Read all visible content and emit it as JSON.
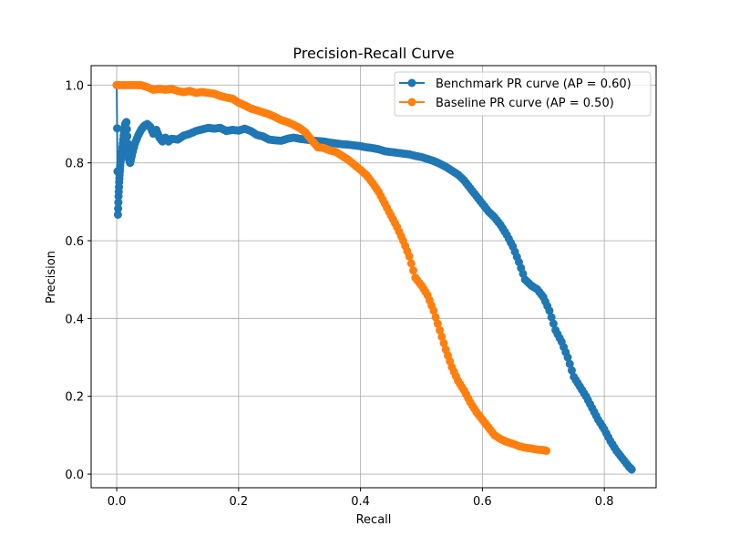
{
  "chart_data": {
    "type": "line",
    "title": "Precision-Recall Curve",
    "xlabel": "Recall",
    "ylabel": "Precision",
    "xlim": [
      -0.042,
      0.885
    ],
    "ylim": [
      -0.035,
      1.05
    ],
    "xticks": [
      0.0,
      0.2,
      0.4,
      0.6,
      0.8
    ],
    "yticks": [
      0.0,
      0.2,
      0.4,
      0.6,
      0.8,
      1.0
    ],
    "xtick_labels": [
      "0.0",
      "0.2",
      "0.4",
      "0.6",
      "0.8"
    ],
    "ytick_labels": [
      "0.0",
      "0.2",
      "0.4",
      "0.6",
      "0.8",
      "1.0"
    ],
    "grid": true,
    "legend_position": "top-right",
    "series": [
      {
        "name": "Benchmark PR curve (AP = 0.60)",
        "color": "#1f77b4",
        "marker": "circle",
        "points": [
          [
            0.0,
            1.0
          ],
          [
            0.002,
            0.667
          ],
          [
            0.003,
            0.714
          ],
          [
            0.004,
            0.75
          ],
          [
            0.005,
            0.778
          ],
          [
            0.006,
            0.8
          ],
          [
            0.008,
            0.82
          ],
          [
            0.01,
            0.85
          ],
          [
            0.012,
            0.88
          ],
          [
            0.014,
            0.9
          ],
          [
            0.016,
            0.905
          ],
          [
            0.018,
            0.85
          ],
          [
            0.02,
            0.81
          ],
          [
            0.022,
            0.8
          ],
          [
            0.025,
            0.82
          ],
          [
            0.03,
            0.85
          ],
          [
            0.035,
            0.87
          ],
          [
            0.04,
            0.885
          ],
          [
            0.045,
            0.895
          ],
          [
            0.05,
            0.9
          ],
          [
            0.055,
            0.893
          ],
          [
            0.06,
            0.875
          ],
          [
            0.065,
            0.885
          ],
          [
            0.07,
            0.865
          ],
          [
            0.075,
            0.855
          ],
          [
            0.08,
            0.865
          ],
          [
            0.085,
            0.855
          ],
          [
            0.09,
            0.862
          ],
          [
            0.1,
            0.86
          ],
          [
            0.11,
            0.87
          ],
          [
            0.12,
            0.875
          ],
          [
            0.13,
            0.882
          ],
          [
            0.14,
            0.886
          ],
          [
            0.15,
            0.89
          ],
          [
            0.16,
            0.888
          ],
          [
            0.17,
            0.89
          ],
          [
            0.18,
            0.882
          ],
          [
            0.19,
            0.885
          ],
          [
            0.2,
            0.883
          ],
          [
            0.21,
            0.888
          ],
          [
            0.22,
            0.882
          ],
          [
            0.23,
            0.872
          ],
          [
            0.24,
            0.868
          ],
          [
            0.25,
            0.86
          ],
          [
            0.26,
            0.858
          ],
          [
            0.27,
            0.857
          ],
          [
            0.28,
            0.862
          ],
          [
            0.29,
            0.865
          ],
          [
            0.3,
            0.862
          ],
          [
            0.31,
            0.86
          ],
          [
            0.32,
            0.858
          ],
          [
            0.33,
            0.856
          ],
          [
            0.34,
            0.855
          ],
          [
            0.35,
            0.852
          ],
          [
            0.36,
            0.85
          ],
          [
            0.37,
            0.848
          ],
          [
            0.38,
            0.847
          ],
          [
            0.39,
            0.845
          ],
          [
            0.4,
            0.843
          ],
          [
            0.41,
            0.84
          ],
          [
            0.42,
            0.838
          ],
          [
            0.43,
            0.835
          ],
          [
            0.44,
            0.83
          ],
          [
            0.45,
            0.828
          ],
          [
            0.46,
            0.826
          ],
          [
            0.47,
            0.824
          ],
          [
            0.48,
            0.822
          ],
          [
            0.49,
            0.818
          ],
          [
            0.5,
            0.815
          ],
          [
            0.51,
            0.81
          ],
          [
            0.52,
            0.805
          ],
          [
            0.53,
            0.798
          ],
          [
            0.54,
            0.79
          ],
          [
            0.55,
            0.78
          ],
          [
            0.56,
            0.77
          ],
          [
            0.57,
            0.755
          ],
          [
            0.58,
            0.735
          ],
          [
            0.59,
            0.715
          ],
          [
            0.6,
            0.695
          ],
          [
            0.61,
            0.675
          ],
          [
            0.62,
            0.66
          ],
          [
            0.63,
            0.64
          ],
          [
            0.64,
            0.615
          ],
          [
            0.65,
            0.585
          ],
          [
            0.66,
            0.545
          ],
          [
            0.67,
            0.5
          ],
          [
            0.68,
            0.485
          ],
          [
            0.69,
            0.475
          ],
          [
            0.7,
            0.455
          ],
          [
            0.71,
            0.42
          ],
          [
            0.72,
            0.37
          ],
          [
            0.73,
            0.34
          ],
          [
            0.74,
            0.3
          ],
          [
            0.75,
            0.25
          ],
          [
            0.76,
            0.225
          ],
          [
            0.77,
            0.2
          ],
          [
            0.78,
            0.17
          ],
          [
            0.79,
            0.14
          ],
          [
            0.8,
            0.115
          ],
          [
            0.81,
            0.085
          ],
          [
            0.82,
            0.06
          ],
          [
            0.83,
            0.04
          ],
          [
            0.84,
            0.02
          ],
          [
            0.845,
            0.012
          ]
        ]
      },
      {
        "name": "Baseline PR curve (AP = 0.50)",
        "color": "#ff7f0e",
        "marker": "circle",
        "points": [
          [
            0.0,
            1.0
          ],
          [
            0.01,
            1.0
          ],
          [
            0.02,
            1.0
          ],
          [
            0.03,
            1.0
          ],
          [
            0.04,
            1.0
          ],
          [
            0.05,
            0.995
          ],
          [
            0.06,
            0.988
          ],
          [
            0.07,
            0.99
          ],
          [
            0.08,
            0.988
          ],
          [
            0.09,
            0.99
          ],
          [
            0.1,
            0.985
          ],
          [
            0.11,
            0.982
          ],
          [
            0.12,
            0.985
          ],
          [
            0.13,
            0.98
          ],
          [
            0.14,
            0.982
          ],
          [
            0.15,
            0.98
          ],
          [
            0.16,
            0.978
          ],
          [
            0.17,
            0.972
          ],
          [
            0.18,
            0.968
          ],
          [
            0.19,
            0.965
          ],
          [
            0.2,
            0.955
          ],
          [
            0.21,
            0.948
          ],
          [
            0.22,
            0.94
          ],
          [
            0.23,
            0.935
          ],
          [
            0.24,
            0.93
          ],
          [
            0.25,
            0.925
          ],
          [
            0.26,
            0.918
          ],
          [
            0.27,
            0.91
          ],
          [
            0.28,
            0.905
          ],
          [
            0.29,
            0.898
          ],
          [
            0.3,
            0.89
          ],
          [
            0.31,
            0.878
          ],
          [
            0.32,
            0.858
          ],
          [
            0.33,
            0.84
          ],
          [
            0.34,
            0.838
          ],
          [
            0.35,
            0.832
          ],
          [
            0.36,
            0.828
          ],
          [
            0.37,
            0.818
          ],
          [
            0.38,
            0.808
          ],
          [
            0.39,
            0.795
          ],
          [
            0.4,
            0.782
          ],
          [
            0.41,
            0.768
          ],
          [
            0.42,
            0.748
          ],
          [
            0.43,
            0.725
          ],
          [
            0.44,
            0.695
          ],
          [
            0.45,
            0.665
          ],
          [
            0.46,
            0.635
          ],
          [
            0.47,
            0.6
          ],
          [
            0.48,
            0.56
          ],
          [
            0.49,
            0.505
          ],
          [
            0.5,
            0.485
          ],
          [
            0.51,
            0.46
          ],
          [
            0.52,
            0.42
          ],
          [
            0.53,
            0.37
          ],
          [
            0.54,
            0.32
          ],
          [
            0.55,
            0.275
          ],
          [
            0.56,
            0.24
          ],
          [
            0.57,
            0.215
          ],
          [
            0.58,
            0.185
          ],
          [
            0.59,
            0.16
          ],
          [
            0.6,
            0.14
          ],
          [
            0.61,
            0.12
          ],
          [
            0.62,
            0.1
          ],
          [
            0.63,
            0.09
          ],
          [
            0.64,
            0.083
          ],
          [
            0.65,
            0.078
          ],
          [
            0.66,
            0.072
          ],
          [
            0.67,
            0.068
          ],
          [
            0.68,
            0.066
          ],
          [
            0.69,
            0.063
          ],
          [
            0.7,
            0.062
          ],
          [
            0.705,
            0.06
          ]
        ]
      }
    ]
  }
}
